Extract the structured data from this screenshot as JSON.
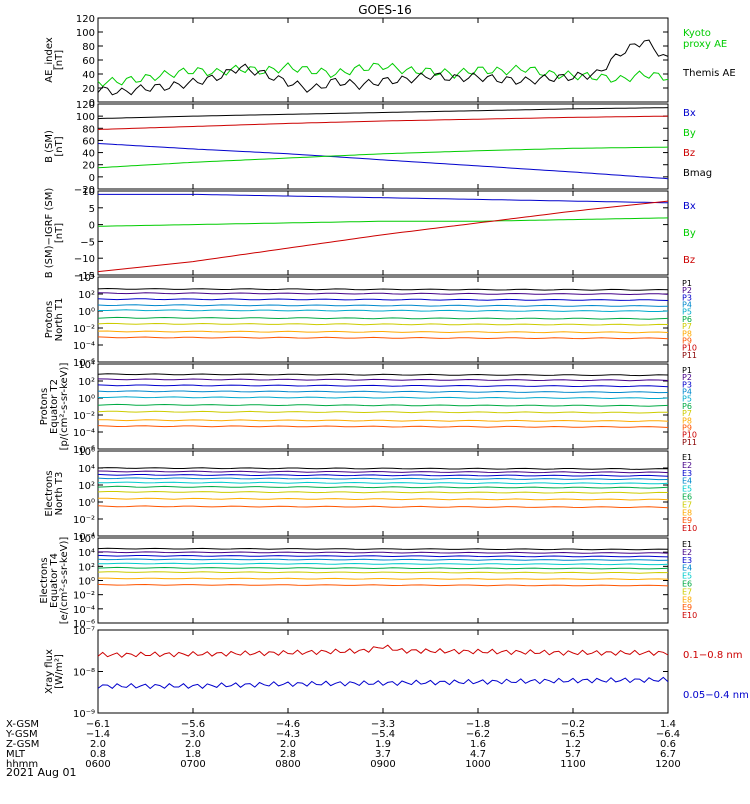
{
  "title": "GOES-16",
  "date_label": "2021 Aug 01",
  "chart_data": [
    {
      "type": "line",
      "id": "ae",
      "ylabel": [
        "AE_index",
        "[nT]"
      ],
      "ylim": [
        0,
        120
      ],
      "yticks": [
        "0",
        "20",
        "40",
        "60",
        "80",
        "100",
        "120"
      ],
      "legend": [
        {
          "label": "Kyoto",
          "color": "#00cc00"
        },
        {
          "label": "proxy AE",
          "color": "#00cc00"
        },
        {
          "label": "Themis AE",
          "color": "#000000"
        }
      ],
      "series": [
        {
          "name": "Kyoto proxy AE",
          "color": "#00cc00",
          "x": [
            6.0,
            6.25,
            6.5,
            6.75,
            7.0,
            7.25,
            7.5,
            7.75,
            8.0,
            8.25,
            8.5,
            8.75,
            9.0,
            9.25,
            9.5,
            9.75,
            10.0,
            10.25,
            10.5,
            10.75,
            11.0,
            11.25,
            11.5,
            11.75,
            12.0
          ],
          "y": [
            28,
            30,
            34,
            40,
            45,
            42,
            48,
            44,
            50,
            45,
            40,
            48,
            52,
            45,
            44,
            40,
            46,
            44,
            48,
            40,
            38,
            36,
            32,
            40,
            35
          ]
        },
        {
          "name": "Themis AE",
          "color": "#000000",
          "x": [
            6.0,
            6.25,
            6.5,
            6.75,
            7.0,
            7.25,
            7.5,
            7.75,
            8.0,
            8.25,
            8.5,
            8.75,
            9.0,
            9.25,
            9.5,
            9.75,
            10.0,
            10.25,
            10.5,
            10.75,
            11.0,
            11.25,
            11.5,
            11.75,
            12.0
          ],
          "y": [
            18,
            14,
            20,
            22,
            28,
            35,
            50,
            40,
            28,
            18,
            30,
            24,
            30,
            32,
            38,
            34,
            36,
            32,
            30,
            34,
            36,
            40,
            70,
            88,
            60
          ]
        }
      ]
    },
    {
      "type": "line",
      "id": "bsm",
      "ylabel": [
        "B (SM)",
        "[nT]"
      ],
      "ylim": [
        -20,
        120
      ],
      "yticks": [
        "−20",
        "0",
        "20",
        "40",
        "60",
        "80",
        "100",
        "120"
      ],
      "legend": [
        {
          "label": "Bx",
          "color": "#0000cc"
        },
        {
          "label": "By",
          "color": "#00cc00"
        },
        {
          "label": "Bz",
          "color": "#cc0000"
        },
        {
          "label": "Bmag",
          "color": "#000000"
        }
      ],
      "series": [
        {
          "name": "Bx",
          "color": "#0000cc",
          "x": [
            6,
            7,
            8,
            9,
            10,
            11,
            12
          ],
          "y": [
            55,
            46,
            38,
            28,
            18,
            8,
            -3
          ]
        },
        {
          "name": "By",
          "color": "#00cc00",
          "x": [
            6,
            7,
            8,
            9,
            10,
            11,
            12
          ],
          "y": [
            15,
            24,
            31,
            38,
            43,
            47,
            49
          ]
        },
        {
          "name": "Bz",
          "color": "#cc0000",
          "x": [
            6,
            7,
            8,
            9,
            10,
            11,
            12
          ],
          "y": [
            78,
            83,
            88,
            92,
            95,
            98,
            100
          ]
        },
        {
          "name": "Bmag",
          "color": "#000000",
          "x": [
            6,
            7,
            8,
            9,
            10,
            11,
            12
          ],
          "y": [
            96,
            100,
            103,
            106,
            109,
            112,
            114
          ]
        }
      ]
    },
    {
      "type": "line",
      "id": "bigrf",
      "ylabel": [
        "B (SM)−IGRF (SM)",
        "[nT]"
      ],
      "ylim": [
        -15,
        10
      ],
      "yticks": [
        "−15",
        "−10",
        "−5",
        "0",
        "5",
        "10"
      ],
      "legend": [
        {
          "label": "Bx",
          "color": "#0000cc"
        },
        {
          "label": "By",
          "color": "#00cc00"
        },
        {
          "label": "Bz",
          "color": "#cc0000"
        }
      ],
      "series": [
        {
          "name": "Bx",
          "color": "#0000cc",
          "x": [
            6,
            7,
            8,
            9,
            10,
            11,
            12
          ],
          "y": [
            9,
            9,
            8.5,
            8,
            7.5,
            7,
            6.5
          ]
        },
        {
          "name": "By",
          "color": "#00cc00",
          "x": [
            6,
            7,
            8,
            9,
            10,
            11,
            12
          ],
          "y": [
            -0.5,
            0,
            0.5,
            1,
            1,
            1.5,
            2
          ]
        },
        {
          "name": "Bz",
          "color": "#cc0000",
          "x": [
            6,
            7,
            8,
            9,
            10,
            11,
            12
          ],
          "y": [
            -14,
            -11,
            -7,
            -3,
            0.5,
            4,
            7
          ]
        }
      ]
    },
    {
      "type": "line",
      "id": "pnorth",
      "ylabel": [
        "Protons",
        "North T1"
      ],
      "ylog": [
        -6,
        4
      ],
      "yticks": [
        "10⁻⁶",
        "10⁻⁴",
        "10⁻²",
        "10⁰",
        "10²",
        "10⁴"
      ],
      "legend_labels": [
        "P1",
        "P2",
        "P3",
        "P4",
        "P5",
        "P6",
        "P7",
        "P8",
        "P9",
        "P10",
        "P11"
      ],
      "legend_colors": [
        "#000000",
        "#440088",
        "#0000cc",
        "#0088cc",
        "#00aacc",
        "#00aa44",
        "#cccc00",
        "#ffaa00",
        "#ff5500",
        "#cc0000",
        "#880000"
      ],
      "levels": [
        2.6,
        2.1,
        1.4,
        0.7,
        0.1,
        -0.8,
        -1.5,
        -2.4,
        -3.1
      ]
    },
    {
      "type": "line",
      "id": "pequator",
      "ylabel": [
        "Protons",
        "Equator T2",
        "[p/(cm²-s-sr-keV)]"
      ],
      "ylog": [
        -6,
        4
      ],
      "yticks": [
        "10⁻⁶",
        "10⁻⁴",
        "10⁻²",
        "10⁰",
        "10²",
        "10⁴"
      ],
      "legend_labels": [
        "P1",
        "P2",
        "P3",
        "P4",
        "P5",
        "P6",
        "P7",
        "P8",
        "P9",
        "P10",
        "P11"
      ],
      "legend_colors": [
        "#000000",
        "#440088",
        "#0000cc",
        "#0088cc",
        "#00aacc",
        "#00aa44",
        "#cccc00",
        "#ffaa00",
        "#ff5500",
        "#cc0000",
        "#880000"
      ],
      "levels": [
        2.8,
        2.2,
        1.5,
        0.8,
        0.1,
        -0.8,
        -1.6,
        -2.6,
        -3.3
      ]
    },
    {
      "type": "line",
      "id": "enorth",
      "ylabel": [
        "Electrons",
        "North T3"
      ],
      "ylog": [
        -4,
        6
      ],
      "yticks": [
        "10⁻⁴",
        "10⁻²",
        "10⁰",
        "10²",
        "10⁴",
        "10⁶"
      ],
      "legend_labels": [
        "E1",
        "E2",
        "E3",
        "E4",
        "E5",
        "E6",
        "E7",
        "E8",
        "E9",
        "E10"
      ],
      "legend_colors": [
        "#000000",
        "#440088",
        "#0000cc",
        "#0088cc",
        "#00cccc",
        "#00aa44",
        "#cccc00",
        "#ffaa00",
        "#ff5500",
        "#cc0000"
      ],
      "levels": [
        4.0,
        3.6,
        3.2,
        2.8,
        2.3,
        1.8,
        1.2,
        0.4,
        -0.5
      ]
    },
    {
      "type": "line",
      "id": "eequator",
      "ylabel": [
        "Electrons",
        "Equator T4",
        "[e/(cm²-s-sr-keV)]"
      ],
      "ylog": [
        -6,
        6
      ],
      "yticks": [
        "10⁻⁶",
        "10⁻⁴",
        "10⁻²",
        "10⁰",
        "10²",
        "10⁴",
        "10⁶"
      ],
      "legend_labels": [
        "E1",
        "E2",
        "E3",
        "E4",
        "E5",
        "E6",
        "E7",
        "E8",
        "E9",
        "E10"
      ],
      "legend_colors": [
        "#000000",
        "#440088",
        "#0000cc",
        "#0088cc",
        "#00cccc",
        "#00aa44",
        "#cccc00",
        "#ffaa00",
        "#ff5500",
        "#cc0000"
      ],
      "levels": [
        4.5,
        4.0,
        3.5,
        3.0,
        2.4,
        1.8,
        1.2,
        0.3,
        -0.6
      ]
    },
    {
      "type": "line",
      "id": "xray",
      "ylabel": [
        "Xray flux",
        "[W/m²]"
      ],
      "ylog": [
        -9,
        -7
      ],
      "yticks": [
        "10⁻⁹",
        "10⁻⁸",
        "10⁻⁷"
      ],
      "legend": [
        {
          "label": "0.1−0.8 nm",
          "color": "#cc0000"
        },
        {
          "label": "0.05−0.4 nm",
          "color": "#0000cc"
        }
      ],
      "series": [
        {
          "name": "0.1−0.8 nm",
          "color": "#cc0000",
          "x": [
            6,
            7,
            8,
            8.8,
            9.0,
            9.2,
            10,
            11,
            12
          ],
          "y": [
            -7.6,
            -7.58,
            -7.55,
            -7.5,
            -7.4,
            -7.5,
            -7.52,
            -7.55,
            -7.55
          ]
        },
        {
          "name": "0.05−0.4 nm",
          "color": "#0000cc",
          "x": [
            6,
            7,
            8,
            9,
            10,
            11,
            12
          ],
          "y": [
            -8.35,
            -8.35,
            -8.3,
            -8.28,
            -8.25,
            -8.22,
            -8.2
          ]
        }
      ]
    }
  ],
  "x_axis": {
    "row_labels": [
      "X-GSM",
      "Y-GSM",
      "Z-GSM",
      "MLT",
      "hhmm"
    ],
    "columns": [
      [
        "−6.1",
        "−1.4",
        "2.0",
        "0.8",
        "0600"
      ],
      [
        "−5.6",
        "−3.0",
        "2.0",
        "1.8",
        "0700"
      ],
      [
        "−4.6",
        "−4.3",
        "2.0",
        "2.8",
        "0800"
      ],
      [
        "−3.3",
        "−5.4",
        "1.9",
        "3.7",
        "0900"
      ],
      [
        "−1.8",
        "−6.2",
        "1.6",
        "4.7",
        "1000"
      ],
      [
        "−0.2",
        "−6.5",
        "1.2",
        "5.7",
        "1100"
      ],
      [
        "1.4",
        "−6.4",
        "0.6",
        "6.7",
        "1200"
      ]
    ]
  }
}
